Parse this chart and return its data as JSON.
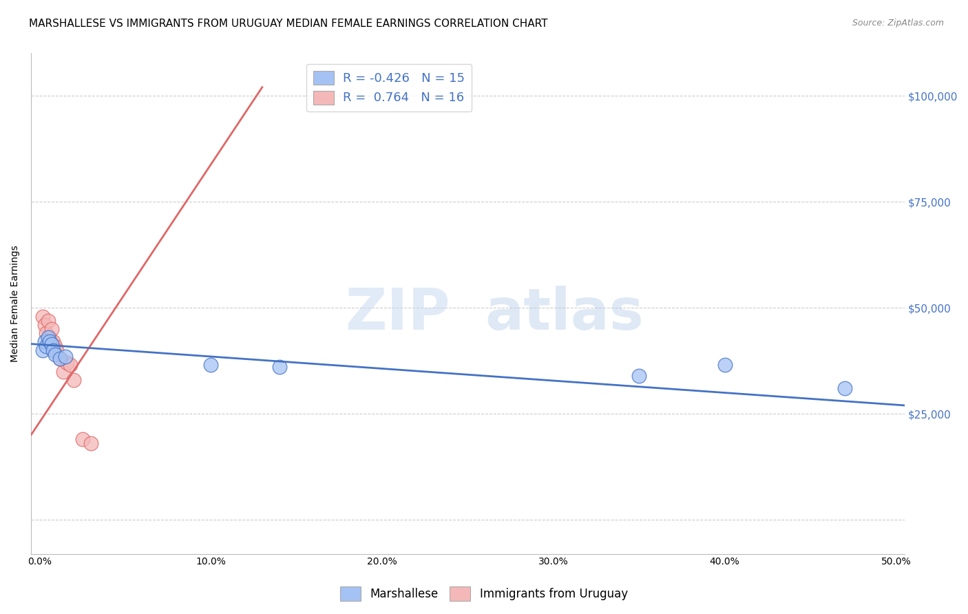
{
  "title": "MARSHALLESE VS IMMIGRANTS FROM URUGUAY MEDIAN FEMALE EARNINGS CORRELATION CHART",
  "source": "Source: ZipAtlas.com",
  "ylabel": "Median Female Earnings",
  "xlabel_ticks": [
    "0.0%",
    "10.0%",
    "20.0%",
    "30.0%",
    "40.0%",
    "50.0%"
  ],
  "xlabel_vals": [
    0.0,
    0.1,
    0.2,
    0.3,
    0.4,
    0.5
  ],
  "ylabel_ticks": [
    0,
    25000,
    50000,
    75000,
    100000
  ],
  "ylabel_labels": [
    "",
    "$25,000",
    "$50,000",
    "$75,000",
    "$100,000"
  ],
  "xlim": [
    -0.005,
    0.505
  ],
  "ylim": [
    -8000,
    110000
  ],
  "blue_R": "-0.426",
  "blue_N": "15",
  "pink_R": "0.764",
  "pink_N": "16",
  "blue_color": "#a4c2f4",
  "pink_color": "#f4b8b8",
  "blue_line_color": "#4472c4",
  "pink_line_color": "#e06666",
  "blue_scatter_x": [
    0.002,
    0.003,
    0.004,
    0.005,
    0.006,
    0.007,
    0.008,
    0.009,
    0.012,
    0.015,
    0.1,
    0.14,
    0.35,
    0.4,
    0.47
  ],
  "blue_scatter_y": [
    40000,
    42000,
    41000,
    43000,
    42000,
    41500,
    40000,
    39000,
    38000,
    38500,
    36500,
    36000,
    34000,
    36500,
    31000
  ],
  "pink_scatter_x": [
    0.002,
    0.003,
    0.004,
    0.005,
    0.006,
    0.007,
    0.008,
    0.009,
    0.01,
    0.012,
    0.014,
    0.016,
    0.018,
    0.02,
    0.025,
    0.03
  ],
  "pink_scatter_y": [
    48000,
    46000,
    44000,
    47000,
    43000,
    45000,
    42000,
    41000,
    40000,
    38000,
    35000,
    37000,
    36500,
    33000,
    19000,
    18000
  ],
  "pink_line_x": [
    -0.005,
    0.13
  ],
  "pink_line_y": [
    20000,
    102000
  ],
  "blue_line_x": [
    -0.005,
    0.505
  ],
  "blue_line_y": [
    41500,
    27000
  ],
  "watermark_zip": "ZIP",
  "watermark_atlas": "atlas",
  "legend_label_blue": "Marshallese",
  "legend_label_pink": "Immigrants from Uruguay",
  "title_fontsize": 11,
  "axis_label_fontsize": 10,
  "tick_fontsize": 10,
  "legend_fontsize": 11
}
